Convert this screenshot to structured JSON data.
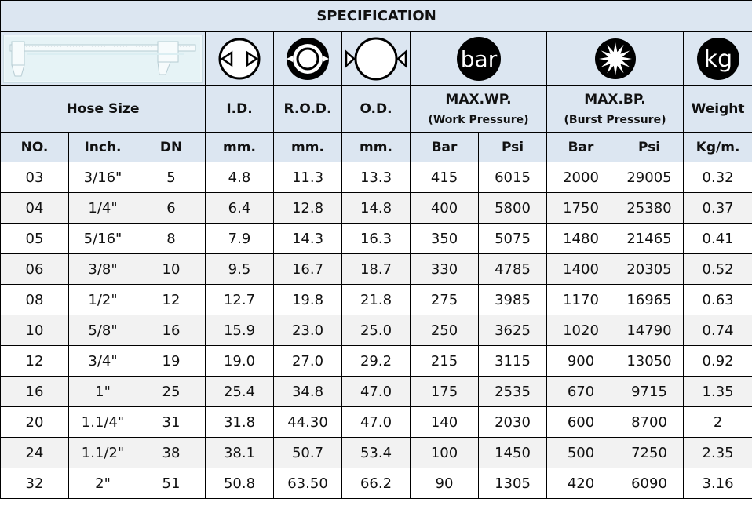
{
  "title": "SPECIFICATION",
  "icons": {
    "caliper": "caliper-image",
    "id": "inner-diameter-icon",
    "rod": "reinforcement-od-icon",
    "od": "outer-diameter-icon",
    "wp": "bar-icon",
    "wp_text": "bar",
    "bp": "burst-icon",
    "weight": "kg-icon",
    "weight_text": "kg"
  },
  "headers": {
    "hose_size": "Hose Size",
    "id": "I.D.",
    "rod": "R.O.D.",
    "od": "O.D.",
    "wp": "MAX.WP.",
    "wp_sub": "(Work Pressure)",
    "bp": "MAX.BP.",
    "bp_sub": "(Burst Pressure)",
    "weight": "Weight"
  },
  "units": [
    "NO.",
    "Inch.",
    "DN",
    "mm.",
    "mm.",
    "mm.",
    "Bar",
    "Psi",
    "Bar",
    "Psi",
    "Kg/m."
  ],
  "rows": [
    [
      "03",
      "3/16\"",
      "5",
      "4.8",
      "11.3",
      "13.3",
      "415",
      "6015",
      "2000",
      "29005",
      "0.32"
    ],
    [
      "04",
      "1/4\"",
      "6",
      "6.4",
      "12.8",
      "14.8",
      "400",
      "5800",
      "1750",
      "25380",
      "0.37"
    ],
    [
      "05",
      "5/16\"",
      "8",
      "7.9",
      "14.3",
      "16.3",
      "350",
      "5075",
      "1480",
      "21465",
      "0.41"
    ],
    [
      "06",
      "3/8\"",
      "10",
      "9.5",
      "16.7",
      "18.7",
      "330",
      "4785",
      "1400",
      "20305",
      "0.52"
    ],
    [
      "08",
      "1/2\"",
      "12",
      "12.7",
      "19.8",
      "21.8",
      "275",
      "3985",
      "1170",
      "16965",
      "0.63"
    ],
    [
      "10",
      "5/8\"",
      "16",
      "15.9",
      "23.0",
      "25.0",
      "250",
      "3625",
      "1020",
      "14790",
      "0.74"
    ],
    [
      "12",
      "3/4\"",
      "19",
      "19.0",
      "27.0",
      "29.2",
      "215",
      "3115",
      "900",
      "13050",
      "0.92"
    ],
    [
      "16",
      "1\"",
      "25",
      "25.4",
      "34.8",
      "47.0",
      "175",
      "2535",
      "670",
      "9715",
      "1.35"
    ],
    [
      "20",
      "1.1/4\"",
      "31",
      "31.8",
      "44.30",
      "47.0",
      "140",
      "2030",
      "600",
      "8700",
      "2"
    ],
    [
      "24",
      "1.1/2\"",
      "38",
      "38.1",
      "50.7",
      "53.4",
      "100",
      "1450",
      "500",
      "7250",
      "2.35"
    ],
    [
      "32",
      "2\"",
      "51",
      "50.8",
      "63.50",
      "66.2",
      "90",
      "1305",
      "420",
      "6090",
      "3.16"
    ]
  ]
}
